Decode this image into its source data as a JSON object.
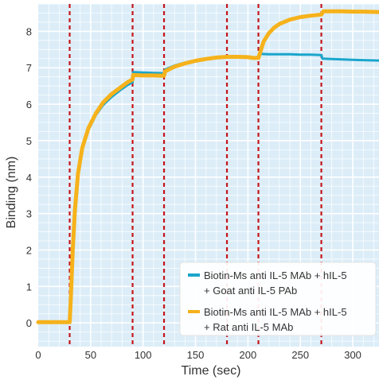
{
  "chart_data": {
    "type": "line",
    "title": "",
    "xlabel": "Time (sec)",
    "ylabel": "Binding (nm)",
    "xlim": [
      0,
      325
    ],
    "ylim": [
      -0.65,
      8.75
    ],
    "x_ticks": [
      0,
      50,
      100,
      150,
      200,
      250,
      300
    ],
    "y_ticks": [
      0,
      1,
      2,
      3,
      4,
      5,
      6,
      7,
      8
    ],
    "grid": true,
    "background": "#dcedf8",
    "grid_color": "#ffffff",
    "event_lines": {
      "x": [
        30,
        90,
        120,
        180,
        210,
        270
      ],
      "color": "#c4161c",
      "style": "dashed"
    },
    "legend": {
      "placement": "bottom-right"
    },
    "series": [
      {
        "name_lines": [
          "Biotin-Ms anti IL-5 MAb + hIL-5",
          "+  Goat anti IL-5 PAb"
        ],
        "color": "#1aa5cc",
        "x": [
          0,
          30,
          31,
          33,
          35,
          38,
          42,
          48,
          55,
          62,
          70,
          78,
          85,
          90,
          90.5,
          100,
          110,
          120,
          121,
          130,
          140,
          150,
          160,
          170,
          180,
          190,
          200,
          205,
          210,
          211,
          220,
          230,
          240,
          250,
          260,
          270,
          271,
          280,
          290,
          300,
          310,
          325
        ],
        "y": [
          0.02,
          0.02,
          0.6,
          2.0,
          3.05,
          4.05,
          4.75,
          5.3,
          5.7,
          5.98,
          6.2,
          6.38,
          6.52,
          6.6,
          6.88,
          6.87,
          6.86,
          6.85,
          6.95,
          7.06,
          7.14,
          7.2,
          7.25,
          7.29,
          7.31,
          7.31,
          7.3,
          7.28,
          7.3,
          7.38,
          7.37,
          7.37,
          7.37,
          7.36,
          7.36,
          7.35,
          7.25,
          7.24,
          7.23,
          7.22,
          7.21,
          7.2
        ]
      },
      {
        "name_lines": [
          "Biotin-Ms anti IL-5 MAb + hIL-5",
          "+  Rat anti IL-5 MAb"
        ],
        "color": "#f6b21b",
        "x": [
          0,
          30,
          31,
          33,
          35,
          38,
          42,
          48,
          55,
          62,
          70,
          78,
          85,
          90,
          90.5,
          100,
          110,
          120,
          121,
          130,
          140,
          150,
          160,
          170,
          180,
          190,
          200,
          205,
          210,
          212,
          215,
          220,
          225,
          230,
          240,
          250,
          260,
          270,
          272,
          280,
          290,
          300,
          310,
          325
        ],
        "y": [
          0.02,
          0.02,
          0.6,
          2.05,
          3.1,
          4.1,
          4.8,
          5.35,
          5.75,
          6.05,
          6.28,
          6.45,
          6.6,
          6.68,
          6.8,
          6.79,
          6.79,
          6.78,
          6.9,
          7.03,
          7.12,
          7.19,
          7.24,
          7.28,
          7.3,
          7.3,
          7.29,
          7.27,
          7.27,
          7.45,
          7.72,
          7.95,
          8.1,
          8.2,
          8.32,
          8.39,
          8.43,
          8.46,
          8.55,
          8.55,
          8.55,
          8.54,
          8.54,
          8.53
        ]
      }
    ]
  }
}
